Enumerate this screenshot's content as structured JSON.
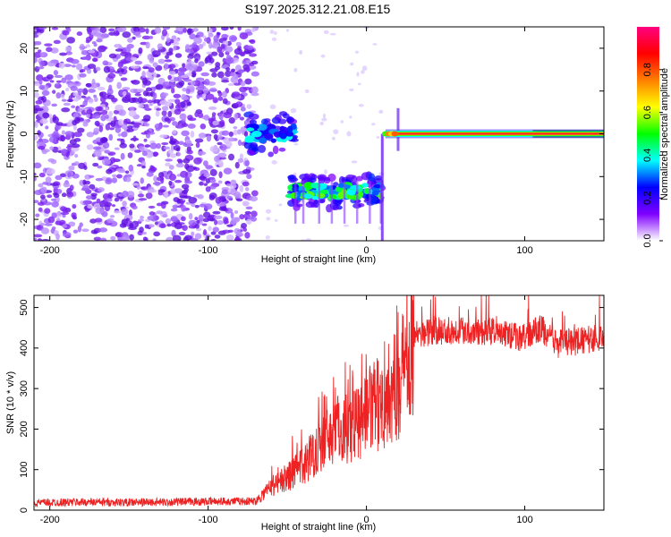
{
  "page": {
    "title": "S197.2025.312.21.08.E15"
  },
  "chart_data": [
    {
      "id": "spectrogram",
      "type": "heatmap",
      "xlabel": "Height of straight line (km)",
      "ylabel": "Frequency (Hz)",
      "xlim": [
        -210,
        150
      ],
      "ylim": [
        -25,
        25
      ],
      "x_ticks": [
        -200,
        -100,
        0,
        100
      ],
      "y_ticks": [
        -20,
        -10,
        0,
        10,
        20
      ],
      "colorbar": {
        "label": "Normalized spectral amplitude",
        "range": [
          0,
          1
        ],
        "ticks": [
          0.0,
          0.2,
          0.4,
          0.6,
          0.8
        ],
        "tick_labels": [
          "0.0",
          "0.2",
          "0.4",
          "0.6",
          "0.8"
        ],
        "colors": [
          "#ffffff",
          "#7f00ff",
          "#0000ff",
          "#00ffff",
          "#00ff00",
          "#ffff00",
          "#ff8000",
          "#ff0000",
          "#ff0080"
        ]
      },
      "regions": [
        {
          "label": "noise",
          "x": [
            -210,
            -70
          ],
          "freq": [
            -25,
            25
          ],
          "level": 0.1
        },
        {
          "label": "carrier-blob-1",
          "x": [
            -75,
            -45
          ],
          "freq": [
            -3,
            3
          ],
          "level": 0.4
        },
        {
          "label": "carrier-shifted",
          "x": [
            -48,
            10
          ],
          "freq": [
            -16,
            -11
          ],
          "level": 0.5
        },
        {
          "label": "carrier-locked",
          "x": [
            12,
            150
          ],
          "freq": [
            -1,
            1
          ],
          "level": 0.95
        }
      ]
    },
    {
      "id": "snr",
      "type": "line",
      "xlabel": "Height of straight line (km)",
      "ylabel": "SNR (10 * v/v)",
      "xlim": [
        -210,
        150
      ],
      "ylim": [
        0,
        530
      ],
      "x_ticks": [
        -200,
        -100,
        0,
        100
      ],
      "y_ticks": [
        0,
        100,
        200,
        300,
        400,
        500
      ],
      "color": "#ee2222",
      "series": [
        {
          "x": [
            -210,
            -180,
            -150,
            -120,
            -90,
            -70,
            -60,
            -50,
            -40,
            -30,
            -20,
            -10,
            0,
            10,
            20,
            25,
            30,
            40,
            60,
            80,
            100,
            110,
            120,
            140,
            150
          ],
          "values": [
            18,
            20,
            19,
            20,
            22,
            22,
            60,
            80,
            110,
            160,
            200,
            210,
            240,
            270,
            310,
            380,
            430,
            440,
            445,
            440,
            425,
            450,
            410,
            420,
            430
          ]
        }
      ]
    }
  ]
}
